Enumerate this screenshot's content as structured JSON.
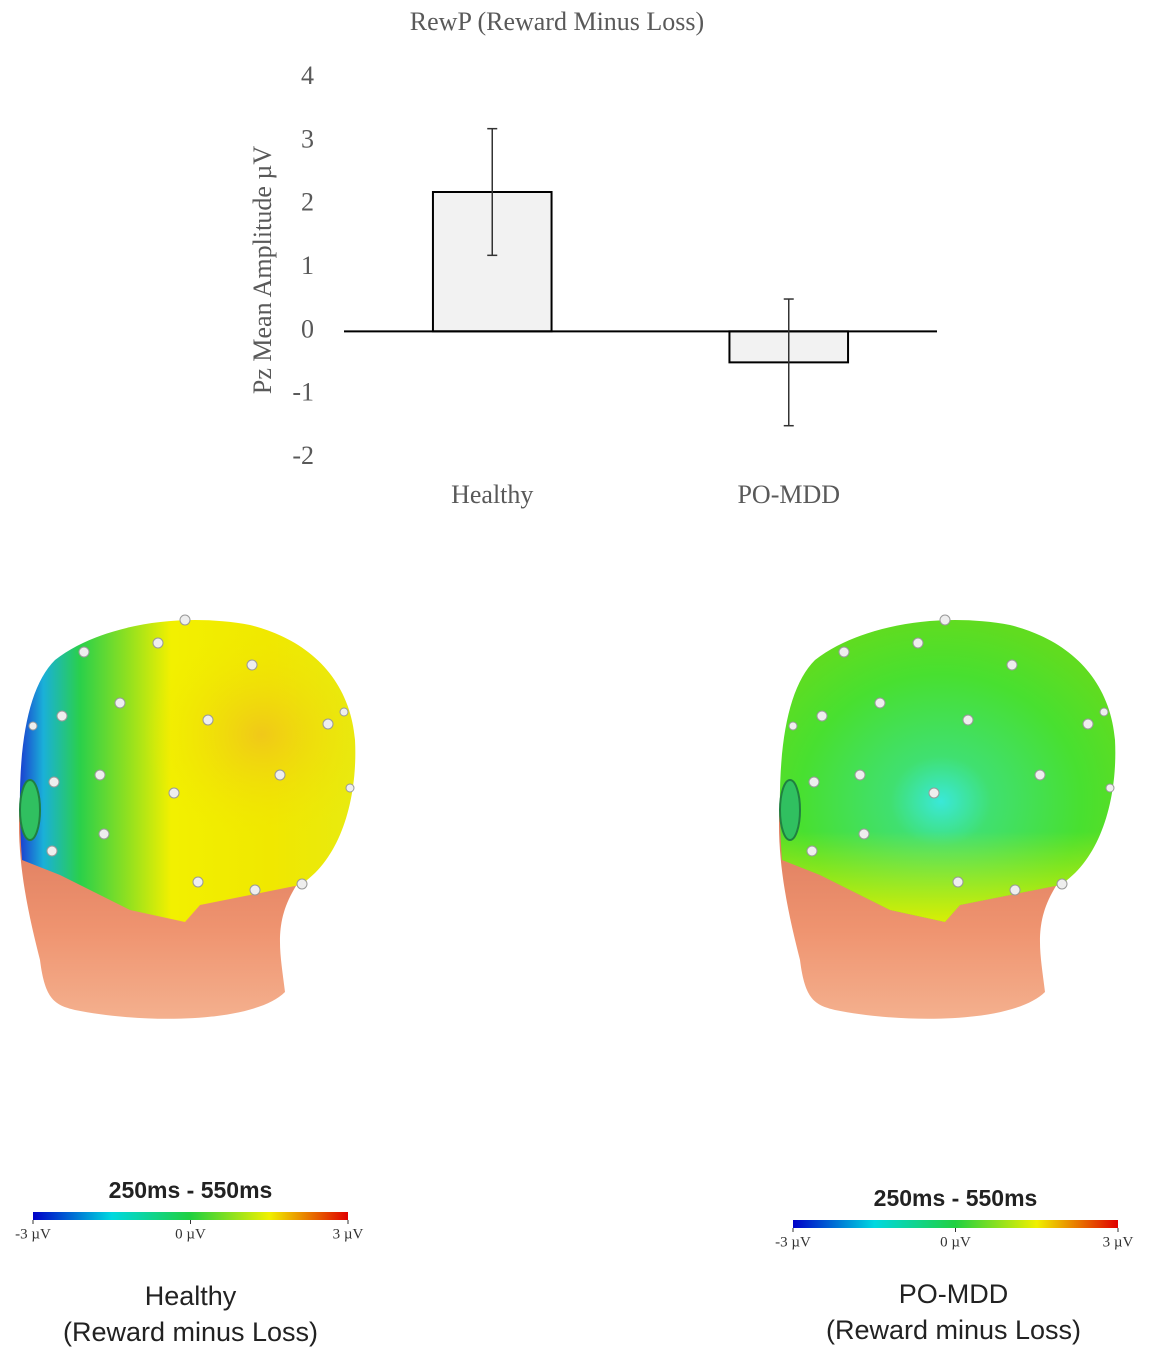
{
  "chart_data": {
    "type": "bar",
    "title": "RewP (Reward Minus Loss)",
    "y_label": "Pz Mean Amplitude µV",
    "categories": [
      "Healthy",
      "PO-MDD"
    ],
    "values": [
      2.2,
      -0.49
    ],
    "errors": [
      1.0,
      1.0
    ],
    "color": "#f2f2f2",
    "ylim": [
      -2,
      4
    ],
    "yticks": [
      -2,
      -1,
      0,
      1,
      2,
      3,
      4
    ],
    "grid": false
  },
  "topomaps": [
    {
      "time_window": "250ms - 550ms",
      "colorbar_lim": [
        -3,
        3
      ],
      "colorbar_ticks": [
        {
          "value": -3,
          "label": "-3 µV"
        },
        {
          "value": 0,
          "label": "0 µV"
        },
        {
          "value": 3,
          "label": "3 µV"
        }
      ],
      "caption": [
        "Healthy",
        "(Reward minus Loss)"
      ]
    },
    {
      "time_window": "250ms - 550ms",
      "colorbar_lim": [
        -3,
        3
      ],
      "colorbar_ticks": [
        {
          "value": -3,
          "label": "-3 µV"
        },
        {
          "value": 0,
          "label": "0 µV"
        },
        {
          "value": 3,
          "label": "3 µV"
        }
      ],
      "caption": [
        "PO-MDD",
        "(Reward minus Loss)"
      ]
    }
  ]
}
